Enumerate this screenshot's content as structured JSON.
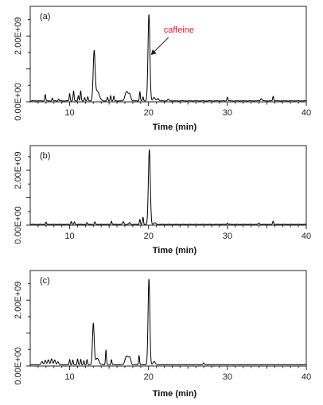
{
  "chart_data": [
    {
      "type": "line",
      "panel_label": "(a)",
      "xlabel": "Time (min)",
      "ylabel": "",
      "xlim": [
        5,
        40
      ],
      "ylim": [
        0,
        2900000000.0
      ],
      "xticks": [
        10,
        20,
        30,
        40
      ],
      "xtick_labels": [
        "10",
        "20",
        "30",
        "40"
      ],
      "yticks": [
        0,
        2000000000.0
      ],
      "ytick_labels": [
        "0.00E+00",
        "2.00E+09"
      ],
      "grid": false,
      "annotation": {
        "text": "caffeine",
        "target_x": 20.0,
        "target_y": 1350000000.0,
        "color": "#e0202a"
      },
      "series": [
        {
          "baseline": 30000000.0,
          "peaks": [
            [
              6.9,
              200000000.0,
              0.06
            ],
            [
              7.8,
              80000000.0,
              0.06
            ],
            [
              8.6,
              50000000.0,
              0.06
            ],
            [
              10.0,
              220000000.0,
              0.06
            ],
            [
              10.5,
              300000000.0,
              0.06
            ],
            [
              11.1,
              160000000.0,
              0.06
            ],
            [
              11.4,
              300000000.0,
              0.06
            ],
            [
              11.9,
              100000000.0,
              0.06
            ],
            [
              12.3,
              120000000.0,
              0.06
            ],
            [
              13.1,
              1450000000.0,
              0.12
            ],
            [
              13.5,
              300000000.0,
              0.25
            ],
            [
              14.8,
              100000000.0,
              0.06
            ],
            [
              15.2,
              160000000.0,
              0.06
            ],
            [
              15.6,
              140000000.0,
              0.06
            ],
            [
              17.2,
              280000000.0,
              0.18
            ],
            [
              17.6,
              200000000.0,
              0.15
            ],
            [
              18.9,
              280000000.0,
              0.06
            ],
            [
              19.3,
              120000000.0,
              0.06
            ],
            [
              20.05,
              2620000000.0,
              0.12
            ],
            [
              20.7,
              100000000.0,
              0.15
            ],
            [
              21.2,
              80000000.0,
              0.1
            ],
            [
              22.5,
              50000000.0,
              0.1
            ],
            [
              30.0,
              120000000.0,
              0.06
            ],
            [
              34.3,
              70000000.0,
              0.1
            ],
            [
              35.8,
              140000000.0,
              0.06
            ]
          ]
        }
      ]
    },
    {
      "type": "line",
      "panel_label": "(b)",
      "xlabel": "Time (min)",
      "ylabel": "",
      "xlim": [
        5,
        40
      ],
      "ylim": [
        0,
        2900000000.0
      ],
      "xticks": [
        10,
        20,
        30,
        40
      ],
      "xtick_labels": [
        "10",
        "20",
        "30",
        "40"
      ],
      "yticks": [
        0,
        2000000000.0
      ],
      "ytick_labels": [
        "0.00E+00",
        "2.00E+09"
      ],
      "grid": false,
      "series": [
        {
          "baseline": 30000000.0,
          "peaks": [
            [
              7.0,
              80000000.0,
              0.06
            ],
            [
              10.2,
              110000000.0,
              0.06
            ],
            [
              10.6,
              90000000.0,
              0.06
            ],
            [
              12.2,
              60000000.0,
              0.06
            ],
            [
              13.2,
              90000000.0,
              0.06
            ],
            [
              15.3,
              120000000.0,
              0.06
            ],
            [
              16.8,
              100000000.0,
              0.08
            ],
            [
              17.6,
              70000000.0,
              0.08
            ],
            [
              18.9,
              180000000.0,
              0.06
            ],
            [
              19.3,
              260000000.0,
              0.06
            ],
            [
              20.1,
              2720000000.0,
              0.12
            ],
            [
              20.8,
              60000000.0,
              0.12
            ],
            [
              30.0,
              50000000.0,
              0.06
            ],
            [
              34.0,
              50000000.0,
              0.08
            ],
            [
              35.8,
              120000000.0,
              0.06
            ]
          ]
        }
      ]
    },
    {
      "type": "line",
      "panel_label": "(c)",
      "xlabel": "Time (min)",
      "ylabel": "",
      "xlim": [
        5,
        40
      ],
      "ylim": [
        0,
        2900000000.0
      ],
      "xticks": [
        10,
        20,
        30,
        40
      ],
      "xtick_labels": [
        "10",
        "20",
        "30",
        "40"
      ],
      "yticks": [
        0,
        2000000000.0
      ],
      "ytick_labels": [
        "0.00E+00",
        "2.00E+09"
      ],
      "grid": false,
      "series": [
        {
          "baseline": 40000000.0,
          "peaks": [
            [
              6.5,
              100000000.0,
              0.1
            ],
            [
              6.9,
              130000000.0,
              0.1
            ],
            [
              7.3,
              150000000.0,
              0.1
            ],
            [
              7.7,
              180000000.0,
              0.1
            ],
            [
              8.1,
              140000000.0,
              0.1
            ],
            [
              8.5,
              90000000.0,
              0.1
            ],
            [
              10.0,
              160000000.0,
              0.06
            ],
            [
              10.4,
              140000000.0,
              0.06
            ],
            [
              11.0,
              180000000.0,
              0.06
            ],
            [
              11.4,
              160000000.0,
              0.06
            ],
            [
              11.8,
              120000000.0,
              0.06
            ],
            [
              12.2,
              150000000.0,
              0.06
            ],
            [
              13.0,
              1250000000.0,
              0.11
            ],
            [
              13.5,
              200000000.0,
              0.2
            ],
            [
              14.6,
              450000000.0,
              0.06
            ],
            [
              15.3,
              160000000.0,
              0.06
            ],
            [
              17.2,
              260000000.0,
              0.18
            ],
            [
              17.6,
              220000000.0,
              0.15
            ],
            [
              18.8,
              280000000.0,
              0.06
            ],
            [
              20.05,
              2600000000.0,
              0.11
            ],
            [
              20.7,
              90000000.0,
              0.15
            ],
            [
              27.0,
              50000000.0,
              0.08
            ]
          ]
        }
      ]
    }
  ]
}
